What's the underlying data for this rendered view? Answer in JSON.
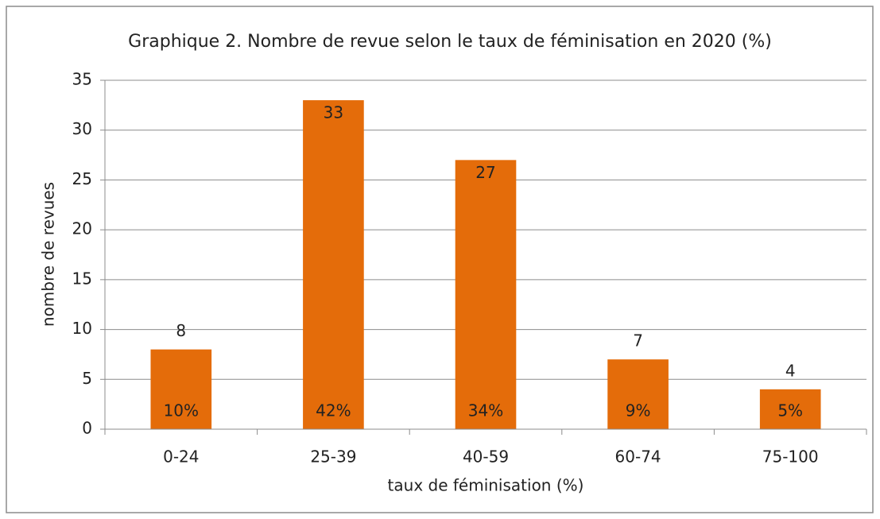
{
  "chart_data": {
    "type": "bar",
    "title": "Graphique 2. Nombre de revue selon le taux de féminisation en 2020 (%)",
    "x_label": "taux de féminisation (%)",
    "y_label": "nombre de revues",
    "categories": [
      "0-24",
      "25-39",
      "40-59",
      "60-74",
      "75-100"
    ],
    "values": [
      8,
      33,
      27,
      7,
      4
    ],
    "annotations": [
      "10%",
      "42%",
      "34%",
      "9%",
      "5%"
    ],
    "color": "#e46c0a",
    "ylim": [
      0,
      35
    ],
    "yticks": [
      0,
      5,
      10,
      15,
      20,
      25,
      30,
      35
    ],
    "grid": true
  }
}
